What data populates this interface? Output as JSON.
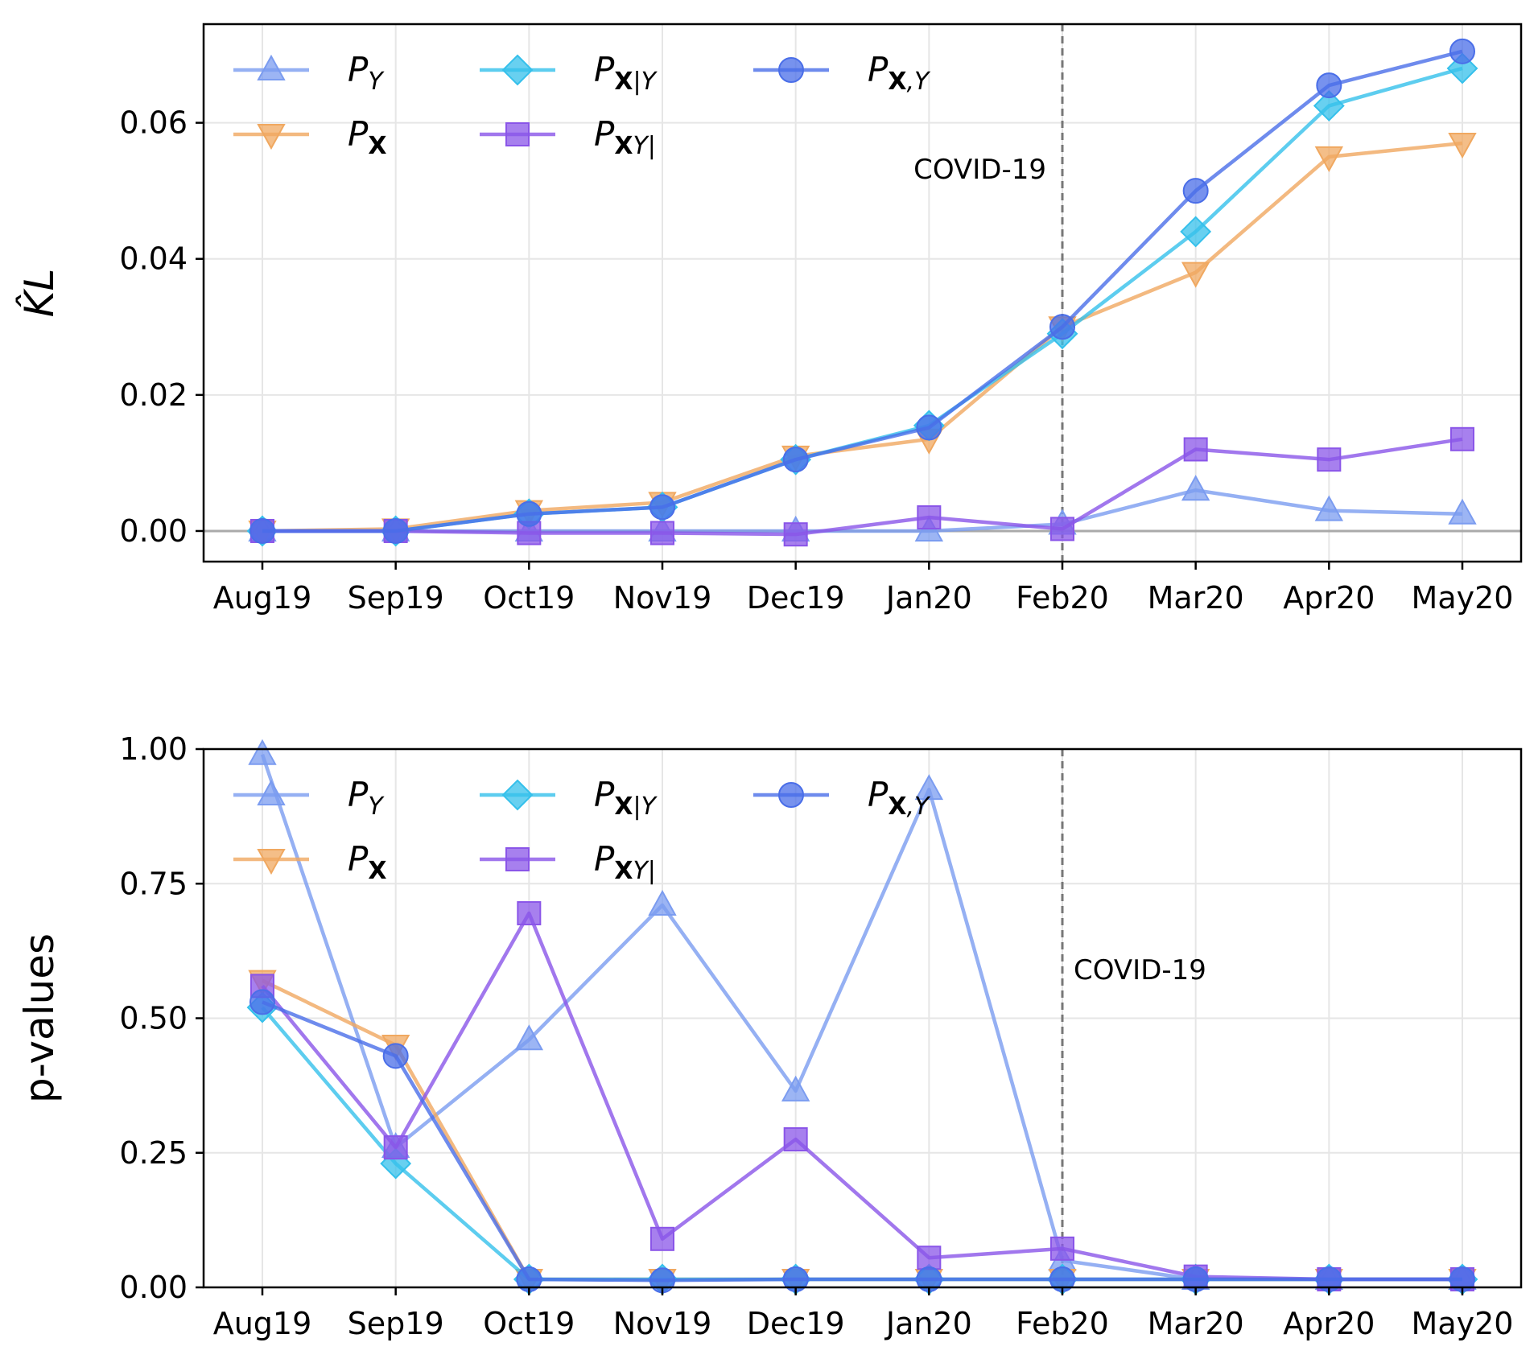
{
  "chart_data": [
    {
      "type": "line",
      "ylabel": "K̂L",
      "xlabel": "",
      "categories": [
        "Aug19",
        "Sep19",
        "Oct19",
        "Nov19",
        "Dec19",
        "Jan20",
        "Feb20",
        "Mar20",
        "Apr20",
        "May20"
      ],
      "ylim": [
        -0.0045,
        0.0745
      ],
      "yticks": [
        "0.00",
        "0.02",
        "0.04",
        "0.06"
      ],
      "ytick_values": [
        0,
        0.02,
        0.04,
        0.06
      ],
      "grid": true,
      "legend_position": "top-left",
      "vline": {
        "x": "Feb20",
        "label": "COVID-19"
      },
      "hline": 0,
      "series": [
        {
          "name": "P_Y",
          "legend_base": "P",
          "legend_sub": "Y",
          "legend_sub_bold": "",
          "color": "#7b9cf0",
          "marker": "triangle-up",
          "values": [
            0.0,
            0.0,
            0.0,
            0.0,
            0.0,
            0.0,
            0.001,
            0.006,
            0.003,
            0.0025
          ]
        },
        {
          "name": "P_X",
          "legend_base": "P",
          "legend_sub": "",
          "legend_sub_bold": "X",
          "color": "#f0a860",
          "marker": "triangle-down",
          "values": [
            0.0,
            0.0003,
            0.003,
            0.0042,
            0.011,
            0.0135,
            0.03,
            0.038,
            0.055,
            0.057
          ]
        },
        {
          "name": "P_X|Y",
          "legend_base": "P",
          "legend_sub": "|Y",
          "legend_sub_bold": "X",
          "color": "#35c0eb",
          "marker": "diamond",
          "values": [
            0.0,
            0.0,
            0.0025,
            0.0035,
            0.0105,
            0.0155,
            0.029,
            0.044,
            0.0625,
            0.068
          ]
        },
        {
          "name": "P_Y|X",
          "legend_base": "P",
          "legend_sub": "Y|",
          "legend_sub_bold": "X",
          "color": "#8a55e8",
          "marker": "square",
          "values": [
            0.0,
            0.0,
            -0.0003,
            -0.0003,
            -0.0005,
            0.002,
            0.0003,
            0.012,
            0.0105,
            0.0135
          ]
        },
        {
          "name": "P_X,Y",
          "legend_base": "P",
          "legend_sub": ",Y",
          "legend_sub_bold": "X",
          "color": "#4a6ee8",
          "marker": "circle",
          "values": [
            0.0,
            0.0,
            0.0025,
            0.0035,
            0.0105,
            0.0152,
            0.03,
            0.05,
            0.0655,
            0.0705
          ]
        }
      ]
    },
    {
      "type": "line",
      "ylabel": "p-values",
      "xlabel": "",
      "categories": [
        "Aug19",
        "Sep19",
        "Oct19",
        "Nov19",
        "Dec19",
        "Jan20",
        "Feb20",
        "Mar20",
        "Apr20",
        "May20"
      ],
      "ylim": [
        0,
        1.0
      ],
      "yticks": [
        "0.00",
        "0.25",
        "0.50",
        "0.75",
        "1.00"
      ],
      "ytick_values": [
        0,
        0.25,
        0.5,
        0.75,
        1.0
      ],
      "grid": true,
      "legend_position": "top-left",
      "vline": {
        "x": "Feb20",
        "label": "COVID-19"
      },
      "series": [
        {
          "name": "P_Y",
          "legend_base": "P",
          "legend_sub": "Y",
          "legend_sub_bold": "",
          "color": "#7b9cf0",
          "marker": "triangle-up",
          "values": [
            0.99,
            0.26,
            0.46,
            0.71,
            0.365,
            0.925,
            0.05,
            0.015,
            0.015,
            0.015
          ]
        },
        {
          "name": "P_X",
          "legend_base": "P",
          "legend_sub": "",
          "legend_sub_bold": "X",
          "color": "#f0a860",
          "marker": "triangle-down",
          "values": [
            0.57,
            0.45,
            0.015,
            0.015,
            0.015,
            0.015,
            0.015,
            0.015,
            0.015,
            0.015
          ]
        },
        {
          "name": "P_X|Y",
          "legend_base": "P",
          "legend_sub": "|Y",
          "legend_sub_bold": "X",
          "color": "#35c0eb",
          "marker": "diamond",
          "values": [
            0.52,
            0.23,
            0.015,
            0.015,
            0.015,
            0.015,
            0.015,
            0.015,
            0.015,
            0.015
          ]
        },
        {
          "name": "P_Y|X",
          "legend_base": "P",
          "legend_sub": "Y|",
          "legend_sub_bold": "X",
          "color": "#8a55e8",
          "marker": "square",
          "values": [
            0.56,
            0.26,
            0.695,
            0.09,
            0.275,
            0.055,
            0.072,
            0.02,
            0.015,
            0.015
          ]
        },
        {
          "name": "P_X,Y",
          "legend_base": "P",
          "legend_sub": ",Y",
          "legend_sub_bold": "X",
          "color": "#4a6ee8",
          "marker": "circle",
          "values": [
            0.53,
            0.43,
            0.015,
            0.013,
            0.015,
            0.015,
            0.015,
            0.015,
            0.015,
            0.015
          ]
        }
      ]
    }
  ]
}
